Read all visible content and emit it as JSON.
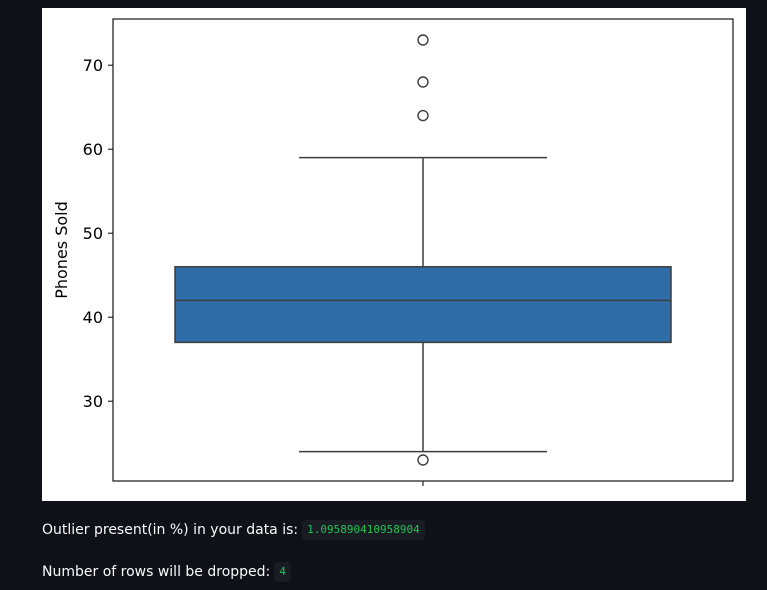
{
  "chart_data": {
    "type": "box",
    "ylabel": "Phones Sold",
    "xlabel": "",
    "title": "",
    "ylim": [
      20.5,
      75.5
    ],
    "yticks": [
      30,
      40,
      50,
      60,
      70
    ],
    "box": {
      "q1": 37,
      "median": 42,
      "q3": 46,
      "whisker_low": 24,
      "whisker_high": 59,
      "outliers": [
        23,
        64,
        68,
        73
      ]
    },
    "colors": {
      "box_fill": "#2f6da8",
      "box_edge": "#3d3d3d"
    }
  },
  "stats": {
    "outlier_label": "Outlier present(in %) in your data is:",
    "outlier_value": "1.095890410958904",
    "rows_label": "Number of rows will be dropped:",
    "rows_value": "4"
  }
}
